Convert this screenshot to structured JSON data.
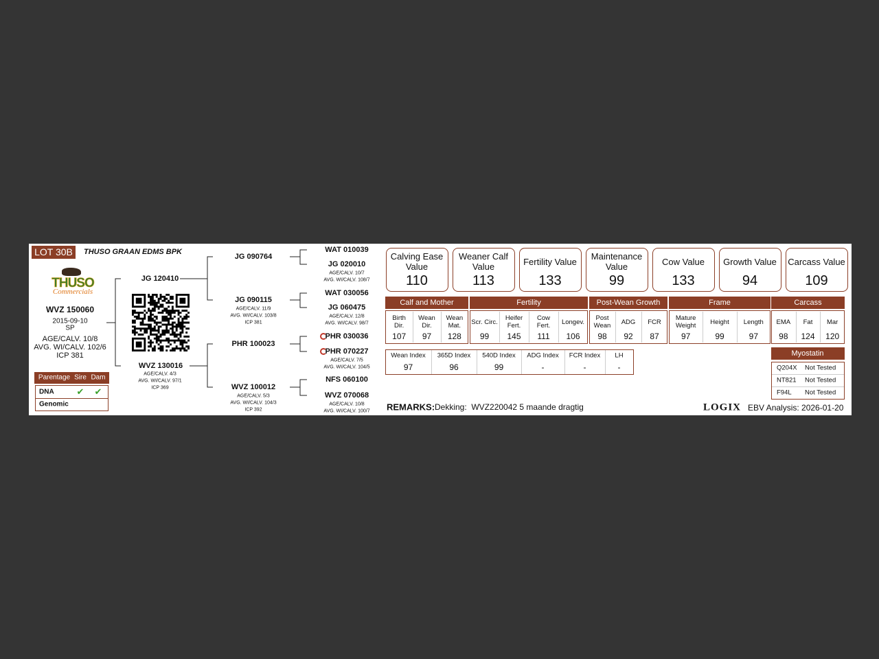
{
  "lot": "LOT 30B",
  "owner": "THUSO GRAAN EDMS BPK",
  "logo": {
    "name": "THUSO",
    "tagline": "Commercials"
  },
  "animal": {
    "id": "WVZ 150060",
    "date": "2015-09-10",
    "breed": "SP",
    "age_calv": "AGE/CALV. 10/8",
    "avg_wi": "AVG. WI/CALV. 102/6",
    "icp": "ICP 381"
  },
  "parentage": {
    "header": [
      "Parentage",
      "Sire",
      "Dam"
    ],
    "rows": [
      {
        "label": "DNA",
        "sire": "✔",
        "dam": "✔"
      },
      {
        "label": "Genomic"
      }
    ]
  },
  "pedigree": {
    "sire": {
      "name": "JG 120410"
    },
    "dam": {
      "name": "WVZ 130016",
      "details": [
        "AGE/CALV. 4/3",
        "AVG. WI/CALV. 97/1",
        "ICP 369"
      ]
    },
    "grandparents": [
      {
        "name": "JG 090764"
      },
      {
        "name": "JG 090115",
        "details": [
          "AGE/CALV. 11/9",
          "AVG. WI/CALV. 103/8",
          "ICP 381"
        ]
      },
      {
        "name": "PHR 100023"
      },
      {
        "name": "WVZ 100012",
        "details": [
          "AGE/CALV. 5/3",
          "AVG. WI/CALV. 104/3",
          "ICP 392"
        ]
      }
    ],
    "great_grandparents": [
      {
        "name": "WAT 010039"
      },
      {
        "name": "JG 020010",
        "details": [
          "AGE/CALV. 10/7",
          "AVG. WI/CALV. 108/7"
        ]
      },
      {
        "name": "WAT 030056"
      },
      {
        "name": "JG 060475",
        "details": [
          "AGE/CALV. 12/8",
          "AVG. WI/CALV. 98/7"
        ]
      },
      {
        "name": "PHR 030036"
      },
      {
        "name": "PHR 070227",
        "details": [
          "AGE/CALV. 7/5",
          "AVG. WI/CALV. 104/5"
        ]
      },
      {
        "name": "NFS 060100"
      },
      {
        "name": "WVZ 070068",
        "details": [
          "AGE/CALV. 10/8",
          "AVG. WI/CALV. 100/7"
        ]
      }
    ]
  },
  "values": [
    {
      "title": "Calving Ease Value",
      "value": 110
    },
    {
      "title": "Weaner Calf Value",
      "value": 113
    },
    {
      "title": "Fertility Value",
      "value": 133
    },
    {
      "title": "Maintenance Value",
      "value": 99
    },
    {
      "title": "Cow Value",
      "value": 133
    },
    {
      "title": "Growth Value",
      "value": 94
    },
    {
      "title": "Carcass Value",
      "value": 109
    }
  ],
  "ebv": [
    {
      "group": "Calf and Mother",
      "traits": [
        {
          "label": "Birth Dir.",
          "value": 107
        },
        {
          "label": "Wean Dir.",
          "value": 97
        },
        {
          "label": "Wean Mat.",
          "value": 128
        }
      ]
    },
    {
      "group": "Fertility",
      "traits": [
        {
          "label": "Scr. Circ.",
          "value": 99
        },
        {
          "label": "Heifer Fert.",
          "value": 145
        },
        {
          "label": "Cow Fert.",
          "value": 111
        },
        {
          "label": "Longev.",
          "value": 106
        }
      ]
    },
    {
      "group": "Post-Wean Growth",
      "traits": [
        {
          "label": "Post Wean",
          "value": 98
        },
        {
          "label": "ADG",
          "value": 92
        },
        {
          "label": "FCR",
          "value": 87
        }
      ]
    },
    {
      "group": "Frame",
      "traits": [
        {
          "label": "Mature Weight",
          "value": 97
        },
        {
          "label": "Height",
          "value": 99
        },
        {
          "label": "Length",
          "value": 97
        }
      ]
    },
    {
      "group": "Carcass",
      "traits": [
        {
          "label": "EMA",
          "value": 98
        },
        {
          "label": "Fat",
          "value": 124
        },
        {
          "label": "Mar",
          "value": 120
        }
      ]
    }
  ],
  "indexes": [
    {
      "label": "Wean Index",
      "value": 97
    },
    {
      "label": "365D Index",
      "value": 96
    },
    {
      "label": "540D Index",
      "value": 99
    },
    {
      "label": "ADG Index",
      "value": "-"
    },
    {
      "label": "FCR Index",
      "value": "-"
    },
    {
      "label": "LH",
      "value": "-"
    }
  ],
  "myostatin": {
    "title": "Myostatin",
    "tests": [
      {
        "marker": "Q204X",
        "result": "Not Tested"
      },
      {
        "marker": "NT821",
        "result": "Not Tested"
      },
      {
        "marker": "F94L",
        "result": "Not Tested"
      }
    ]
  },
  "remarks": {
    "label": "REMARKS:",
    "text": "Dekking:  WVZ220042 5 maande dragtig"
  },
  "footer": {
    "brand": "LOGIX",
    "analysis": "EBV Analysis: 2026-01-20"
  }
}
